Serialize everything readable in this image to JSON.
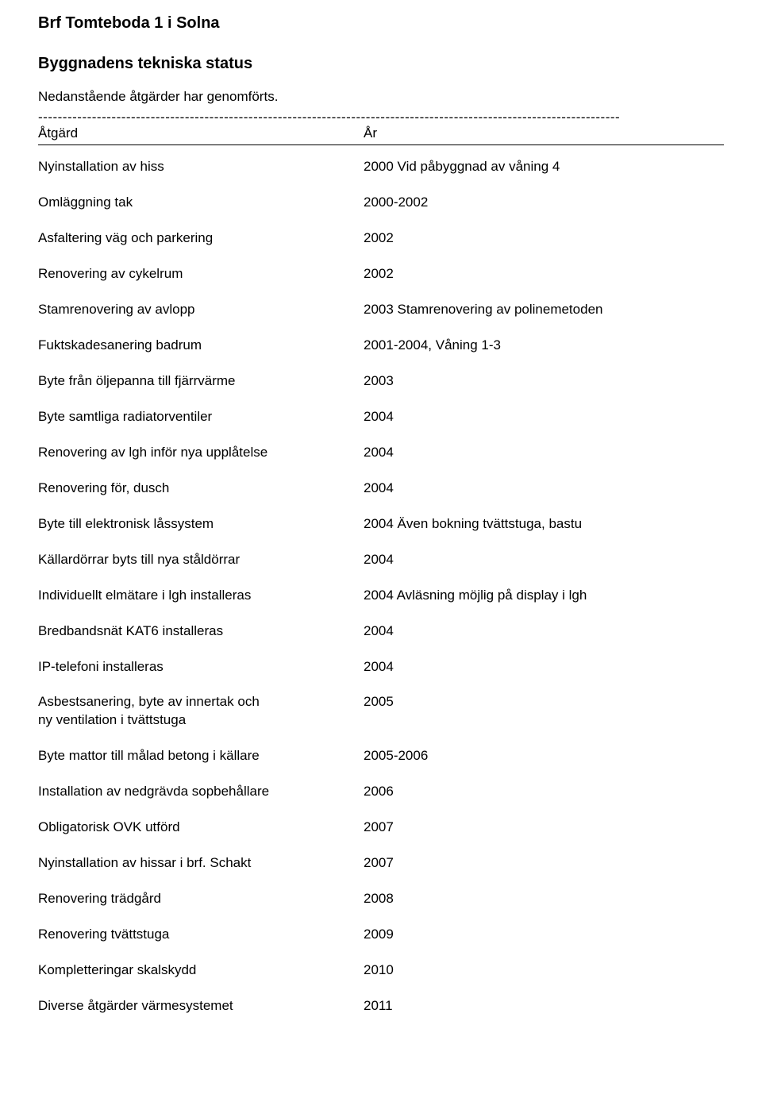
{
  "org_title": "Brf Tomteboda 1 i Solna",
  "section_title": "Byggnadens tekniska status",
  "intro": "Nedanstående åtgärder har genomförts.",
  "dash_line": "-----------------------------------------------------------------------------------------------------------------------",
  "header": {
    "col_a": "Åtgärd",
    "col_b": "År"
  },
  "rows": [
    {
      "a": "Nyinstallation av hiss",
      "b": "2000 Vid påbyggnad av våning 4"
    },
    {
      "a": "Omläggning tak",
      "b": "2000-2002"
    },
    {
      "a": "Asfaltering väg och parkering",
      "b": "2002"
    },
    {
      "a": "Renovering av cykelrum",
      "b": "2002"
    },
    {
      "a": "Stamrenovering av avlopp",
      "b": "2003 Stamrenovering av polinemetoden"
    },
    {
      "a": "Fuktskadesanering badrum",
      "b": "2001-2004, Våning 1-3"
    },
    {
      "a": "Byte från öljepanna till fjärrvärme",
      "b": "2003"
    },
    {
      "a": "Byte samtliga radiatorventiler",
      "b": "2004"
    },
    {
      "a": "Renovering av lgh inför nya upplåtelse",
      "b": "2004"
    },
    {
      "a": "Renovering för, dusch",
      "b": "2004"
    },
    {
      "a": "Byte till elektronisk låssystem",
      "b": "2004 Även bokning tvättstuga, bastu"
    },
    {
      "a": "Källardörrar byts till nya ståldörrar",
      "b": "2004"
    },
    {
      "a": "Individuellt elmätare i lgh installeras",
      "b": "2004 Avläsning möjlig på display i lgh"
    },
    {
      "a": "Bredbandsnät KAT6 installeras",
      "b": "2004"
    },
    {
      "a": "IP-telefoni installeras",
      "b": "2004"
    },
    {
      "a": "Asbestsanering, byte av innertak och\nny ventilation i tvättstuga",
      "b": "2005"
    },
    {
      "a": "Byte mattor till målad betong i källare",
      "b": "2005-2006"
    },
    {
      "a": "Installation av nedgrävda sopbehållare",
      "b": "2006"
    },
    {
      "a": "Obligatorisk OVK utförd",
      "b": "2007"
    },
    {
      "a": "Nyinstallation av hissar i brf. Schakt",
      "b": "2007"
    },
    {
      "a": "Renovering trädgård",
      "b": "2008"
    },
    {
      "a": "Renovering tvättstuga",
      "b": "2009"
    },
    {
      "a": "Kompletteringar skalskydd",
      "b": "2010"
    },
    {
      "a": "Diverse åtgärder värmesystemet",
      "b": "2011"
    }
  ]
}
